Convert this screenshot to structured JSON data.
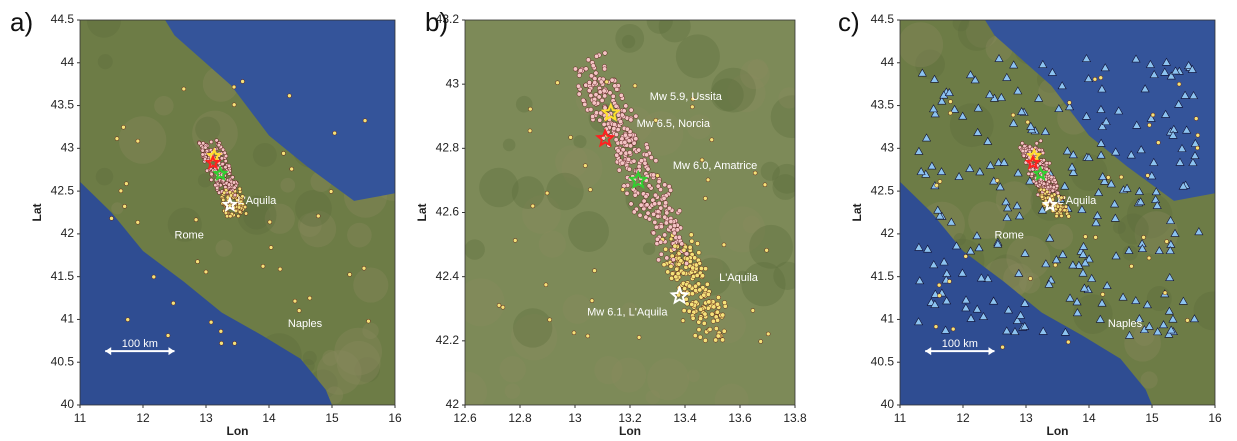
{
  "panels": [
    {
      "label": "a)",
      "x_label": "Lon",
      "y_label": "Lat",
      "xlim": [
        11,
        16
      ],
      "ylim": [
        40,
        44.5
      ],
      "xticks": [
        11,
        12,
        13,
        14,
        15,
        16
      ],
      "yticks": [
        40,
        40.5,
        41,
        41.5,
        42,
        42.5,
        43,
        43.5,
        44,
        44.5
      ],
      "annotations": [
        "L'Aquila",
        "Rome",
        "Naples"
      ],
      "scale_bar": "100 km",
      "mainshocks": [
        {
          "lon": 13.13,
          "lat": 42.91,
          "color": "#ffe030"
        },
        {
          "lon": 13.11,
          "lat": 42.83,
          "color": "#ff2020"
        },
        {
          "lon": 13.23,
          "lat": 42.7,
          "color": "#30d030"
        },
        {
          "lon": 13.38,
          "lat": 42.34,
          "color": "#ffffff"
        }
      ]
    },
    {
      "label": "b)",
      "x_label": "Lon",
      "y_label": "Lat",
      "xlim": [
        12.6,
        13.8
      ],
      "ylim": [
        42,
        43.2
      ],
      "xticks": [
        12.6,
        12.8,
        13,
        13.2,
        13.4,
        13.6,
        13.8
      ],
      "yticks": [
        42,
        42.2,
        42.4,
        42.6,
        42.8,
        43,
        43.2
      ],
      "annotations": [
        "Mw 5.9, Ussita",
        "Mw 6.5, Norcia",
        "Mw 6.0, Amatrice",
        "L'Aquila",
        "Mw 6.1, L'Aquila"
      ],
      "mainshocks": [
        {
          "lon": 13.13,
          "lat": 42.91,
          "color": "#ffe030"
        },
        {
          "lon": 13.11,
          "lat": 42.83,
          "color": "#ff2020"
        },
        {
          "lon": 13.23,
          "lat": 42.7,
          "color": "#30d030"
        },
        {
          "lon": 13.38,
          "lat": 42.34,
          "color": "#ffffff"
        }
      ]
    },
    {
      "label": "c)",
      "x_label": "Lon",
      "y_label": "Lat",
      "xlim": [
        11,
        16
      ],
      "ylim": [
        40,
        44.5
      ],
      "xticks": [
        11,
        12,
        13,
        14,
        15,
        16
      ],
      "yticks": [
        40,
        40.5,
        41,
        41.5,
        42,
        42.5,
        43,
        43.5,
        44,
        44.5
      ],
      "annotations": [
        "L'Aquila",
        "Rome",
        "Naples"
      ],
      "scale_bar": "100 km",
      "mainshocks": [
        {
          "lon": 13.13,
          "lat": 42.91,
          "color": "#ffe030"
        },
        {
          "lon": 13.11,
          "lat": 42.83,
          "color": "#ff2020"
        },
        {
          "lon": 13.23,
          "lat": 42.7,
          "color": "#30d030"
        },
        {
          "lon": 13.38,
          "lat": 42.34,
          "color": "#ffffff"
        }
      ]
    }
  ]
}
